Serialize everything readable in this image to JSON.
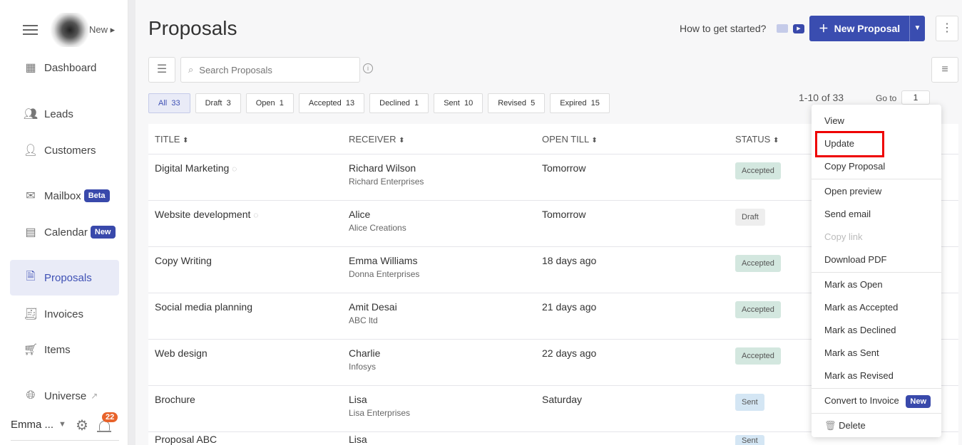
{
  "sidebar": {
    "top_new": "New",
    "items": [
      {
        "label": "Dashboard",
        "icon": "grid-icon"
      },
      {
        "label": "Leads",
        "icon": "users-icon"
      },
      {
        "label": "Customers",
        "icon": "user-icon"
      },
      {
        "label": "Mailbox",
        "icon": "mail-icon",
        "badge": "Beta"
      },
      {
        "label": "Calendar",
        "icon": "calendar-icon",
        "badge": "New"
      },
      {
        "label": "Proposals",
        "icon": "document-icon"
      },
      {
        "label": "Invoices",
        "icon": "invoice-icon"
      },
      {
        "label": "Items",
        "icon": "cart-icon"
      },
      {
        "label": "Universe",
        "icon": "globe-icon"
      }
    ],
    "user": "Emma ...",
    "notifications": "22"
  },
  "header": {
    "title": "Proposals",
    "how_to": "How to get started?",
    "new_button": "New Proposal"
  },
  "search": {
    "placeholder": "Search Proposals"
  },
  "tabs": [
    {
      "label": "All",
      "count": "33"
    },
    {
      "label": "Draft",
      "count": "3"
    },
    {
      "label": "Open",
      "count": "1"
    },
    {
      "label": "Accepted",
      "count": "13"
    },
    {
      "label": "Declined",
      "count": "1"
    },
    {
      "label": "Sent",
      "count": "10"
    },
    {
      "label": "Revised",
      "count": "5"
    },
    {
      "label": "Expired",
      "count": "15"
    }
  ],
  "pager": {
    "range": "1-10 of 33",
    "goto_label": "Go to",
    "page": "1"
  },
  "columns": [
    "TITLE",
    "RECEIVER",
    "OPEN TILL",
    "STATUS"
  ],
  "rows": [
    {
      "title": "Digital Marketing",
      "hidden": true,
      "name": "Richard Wilson",
      "company": "Richard Enterprises",
      "open_till": "Tomorrow",
      "status": "Accepted"
    },
    {
      "title": "Website development",
      "hidden": true,
      "name": "Alice",
      "company": "Alice Creations",
      "open_till": "Tomorrow",
      "status": "Draft"
    },
    {
      "title": "Copy Writing",
      "name": "Emma Williams",
      "company": "Donna Enterprises",
      "open_till": "18 days ago",
      "status": "Accepted"
    },
    {
      "title": "Social media planning",
      "name": "Amit Desai",
      "company": "ABC ltd",
      "open_till": "21 days ago",
      "status": "Accepted"
    },
    {
      "title": "Web design",
      "name": "Charlie",
      "company": "Infosys",
      "open_till": "22 days ago",
      "status": "Accepted"
    },
    {
      "title": "Brochure",
      "name": "Lisa",
      "company": "Lisa Enterprises",
      "open_till": "Saturday",
      "status": "Sent"
    },
    {
      "title": "Proposal ABC",
      "name": "Lisa",
      "company": "",
      "open_till": "",
      "status": "Sent"
    }
  ],
  "status_colors": {
    "Accepted": "#d3e7df",
    "Draft": "#eeeeee",
    "Sent": "#d4e6f4"
  },
  "menu": {
    "groups": [
      [
        "View",
        "Update",
        "Copy Proposal"
      ],
      [
        "Open preview",
        "Send email",
        "Copy link",
        "Download PDF"
      ],
      [
        "Mark as Open",
        "Mark as Accepted",
        "Mark as Declined",
        "Mark as Sent",
        "Mark as Revised"
      ],
      [
        "Convert to Invoice"
      ],
      [
        "Delete"
      ]
    ],
    "convert_badge": "New",
    "disabled": [
      "Copy link"
    ],
    "highlighted": "Update"
  },
  "accent": "#3a4db0"
}
